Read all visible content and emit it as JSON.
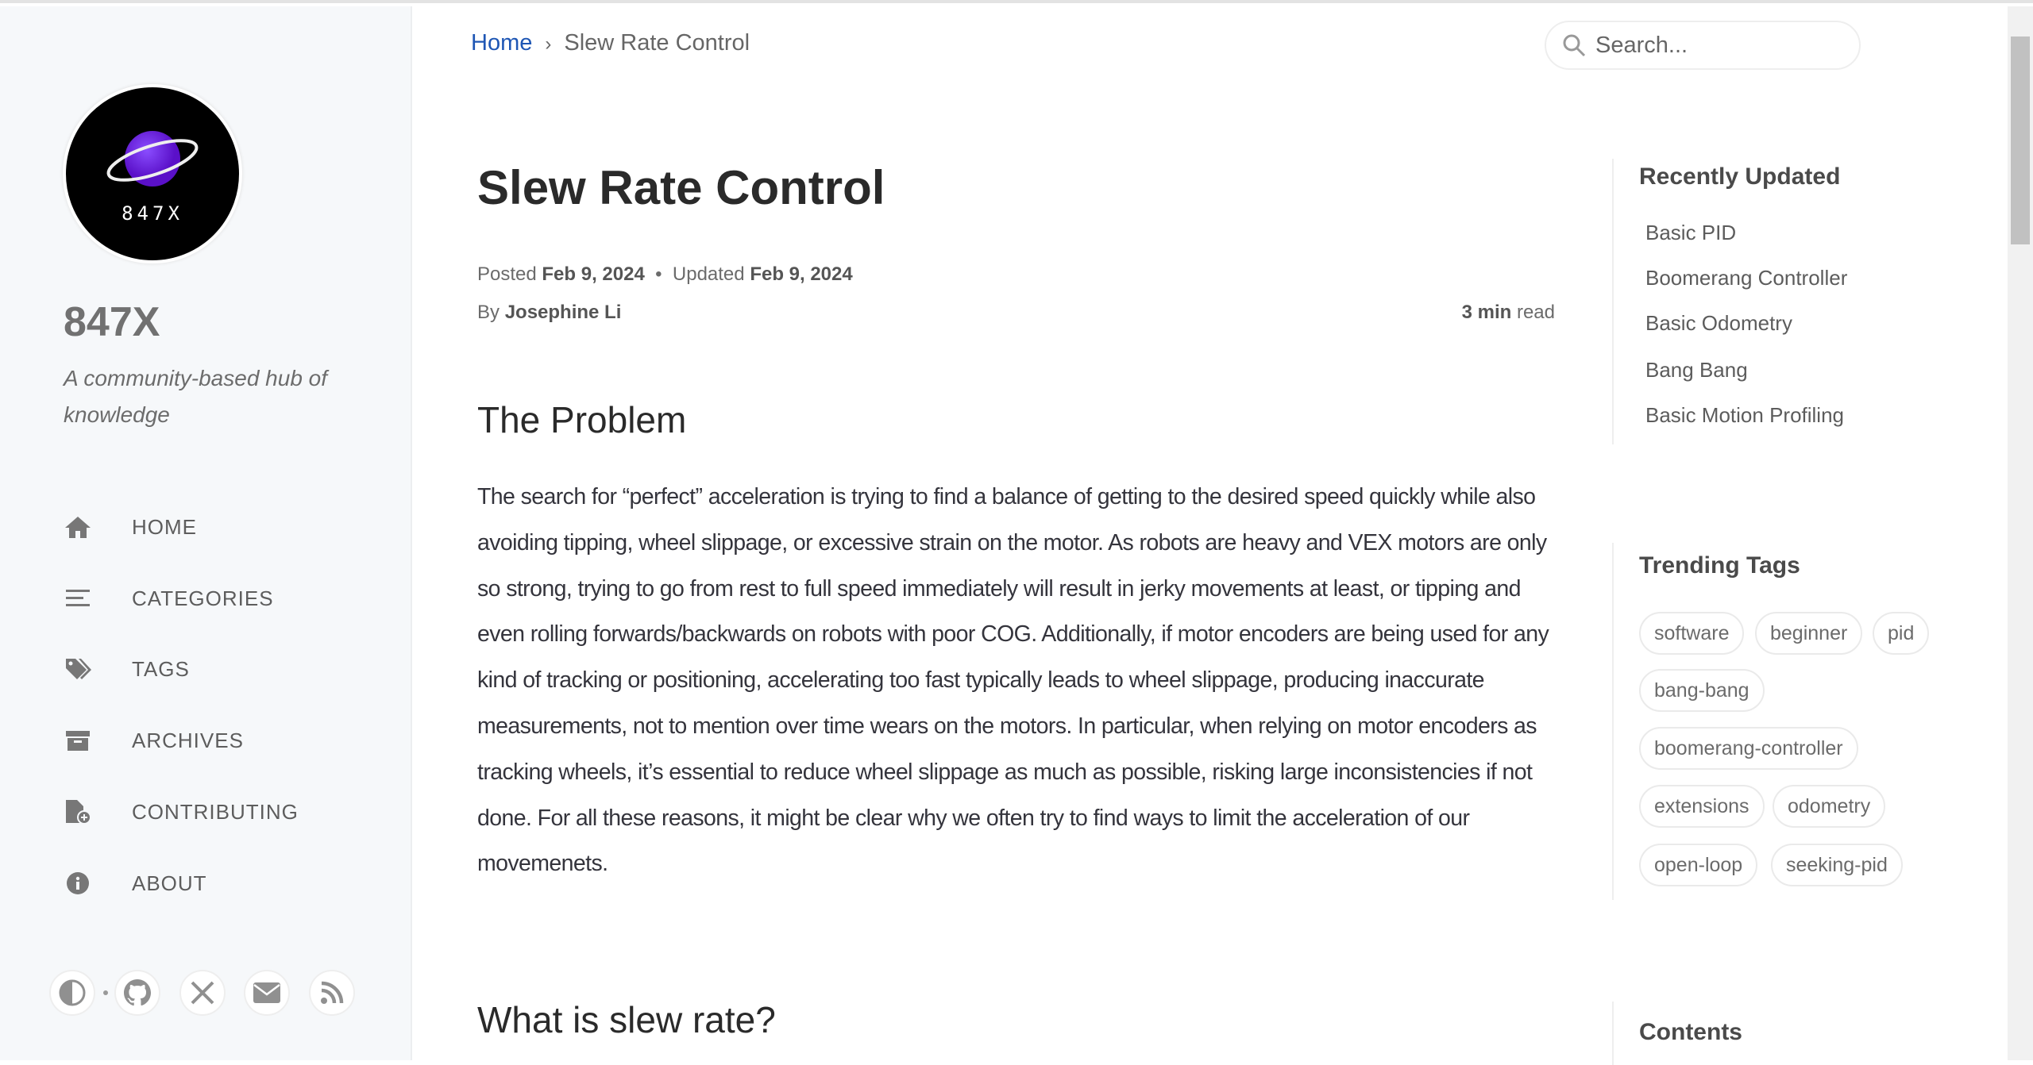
{
  "site": {
    "title": "847X",
    "subtitle": "A community-based hub of knowledge",
    "logo_text": "847X"
  },
  "nav": [
    {
      "label": "HOME",
      "icon": "home-icon"
    },
    {
      "label": "CATEGORIES",
      "icon": "stream-icon"
    },
    {
      "label": "TAGS",
      "icon": "tags-icon"
    },
    {
      "label": "ARCHIVES",
      "icon": "archive-icon"
    },
    {
      "label": "CONTRIBUTING",
      "icon": "file-plus-icon"
    },
    {
      "label": "ABOUT",
      "icon": "info-icon"
    }
  ],
  "social": [
    "theme-toggle-icon",
    "github-icon",
    "x-icon",
    "email-icon",
    "rss-icon"
  ],
  "breadcrumb": {
    "home": "Home",
    "sep": "›",
    "current": "Slew Rate Control"
  },
  "search": {
    "placeholder": "Search..."
  },
  "post": {
    "title": "Slew Rate Control",
    "posted_label": "Posted",
    "posted": "Feb 9, 2024",
    "updated_label": "Updated",
    "updated": "Feb 9, 2024",
    "by_label": "By",
    "author": "Josephine Li",
    "read_num": "3 min",
    "read_label": "read",
    "h_problem": "The Problem",
    "problem_text": "The search for “perfect” acceleration is trying to find a balance of getting to the desired speed quickly while also avoiding tipping, wheel slippage, or excessive strain on the motor. As robots are heavy and VEX motors are only so strong, trying to go from rest to full speed immediately will result in jerky movements at least, or tipping and even rolling forwards/backwards on robots with poor COG. Additionally, if motor encoders are being used for any kind of tracking or positioning, accelerating too fast typically leads to wheel slippage, producing inaccurate measurements, not to mention over time wears on the motors. In particular, when relying on motor encoders as tracking wheels, it’s essential to reduce wheel slippage as much as possible, risking large inconsistencies if not done. For all these reasons, it might be clear why we often try to find ways to limit the acceleration of our movemenets.",
    "h_slew": "What is slew rate?"
  },
  "panel": {
    "recent_title": "Recently Updated",
    "recent": [
      "Basic PID",
      "Boomerang Controller",
      "Basic Odometry",
      "Bang Bang",
      "Basic Motion Profiling"
    ],
    "tags_title": "Trending Tags",
    "tags": [
      "software",
      "beginner",
      "pid",
      "bang-bang",
      "boomerang-controller",
      "extensions",
      "odometry",
      "open-loop",
      "seeking-pid"
    ],
    "contents_title": "Contents"
  }
}
